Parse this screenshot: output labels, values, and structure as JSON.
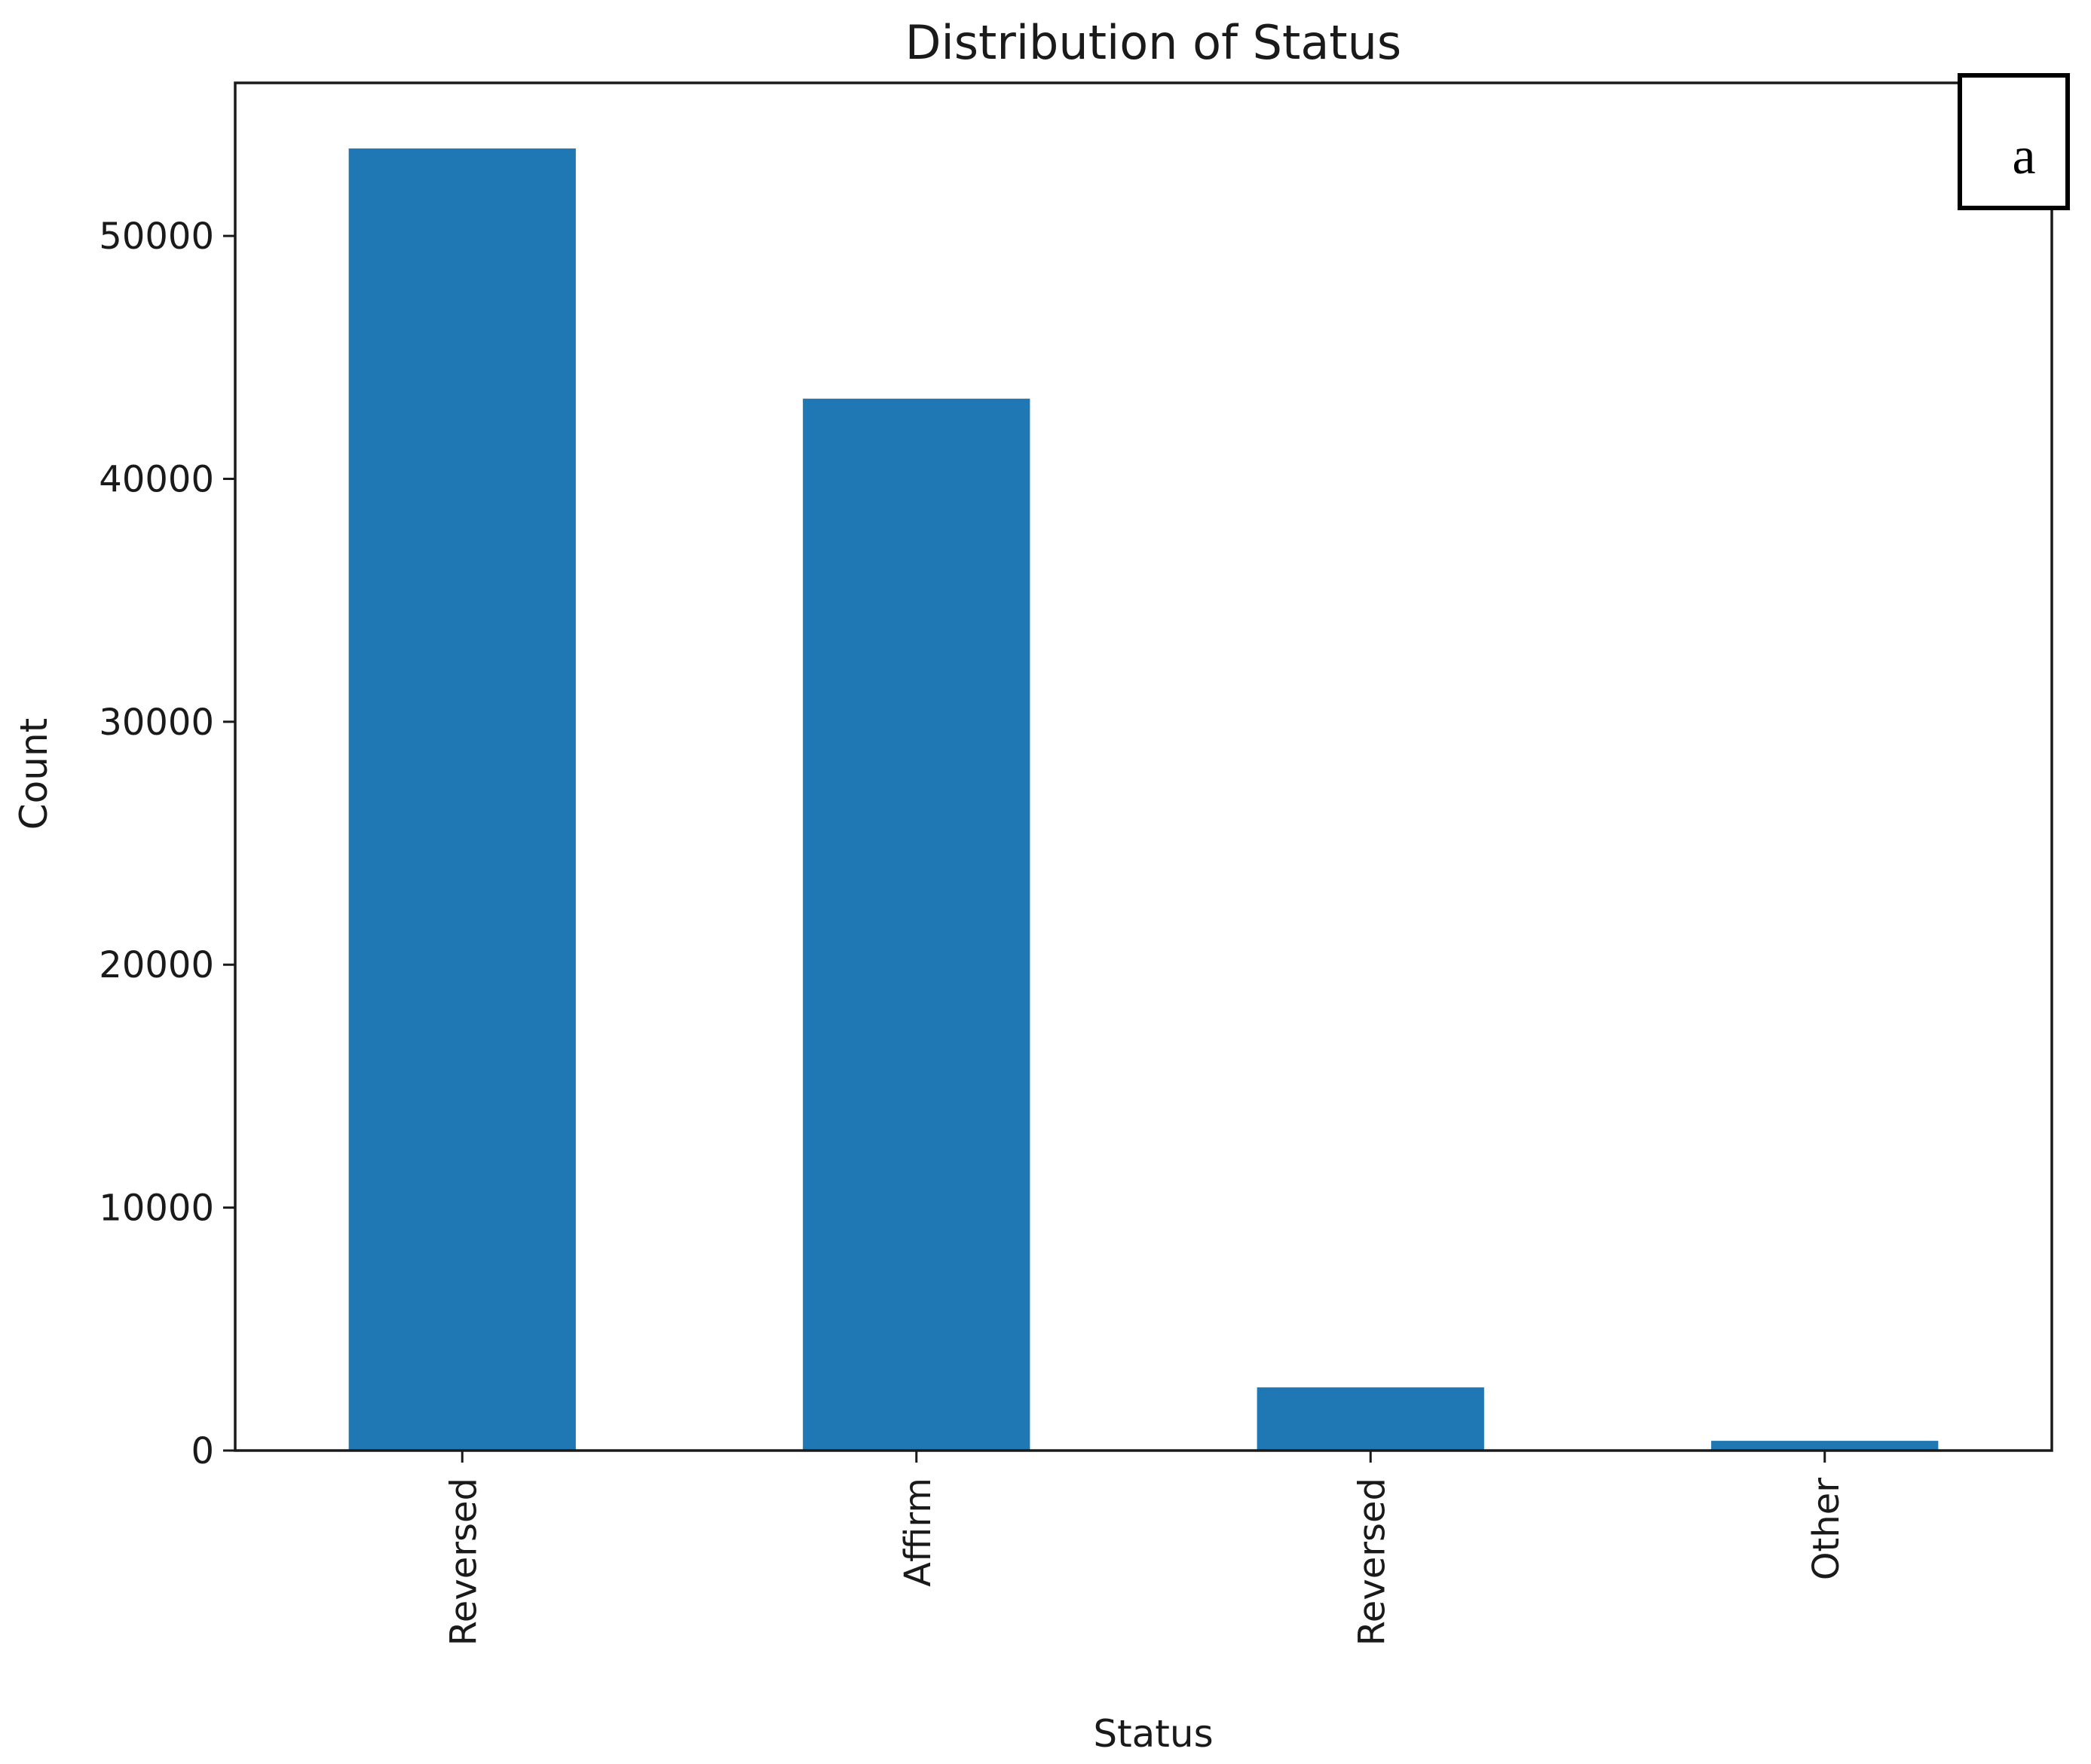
{
  "chart_data": {
    "type": "bar",
    "title": "Distribution of Status",
    "xlabel": "Status",
    "ylabel": "Count",
    "panel_label": "a",
    "categories": [
      "Reversed",
      "Affirm",
      "Reversed",
      "Other"
    ],
    "values": [
      53600,
      43300,
      2600,
      400
    ],
    "ylim": [
      0,
      56300
    ],
    "yticks": [
      0,
      10000,
      20000,
      30000,
      40000,
      50000
    ],
    "bar_color": "#1f77b4",
    "grid": false,
    "legend": "none"
  }
}
